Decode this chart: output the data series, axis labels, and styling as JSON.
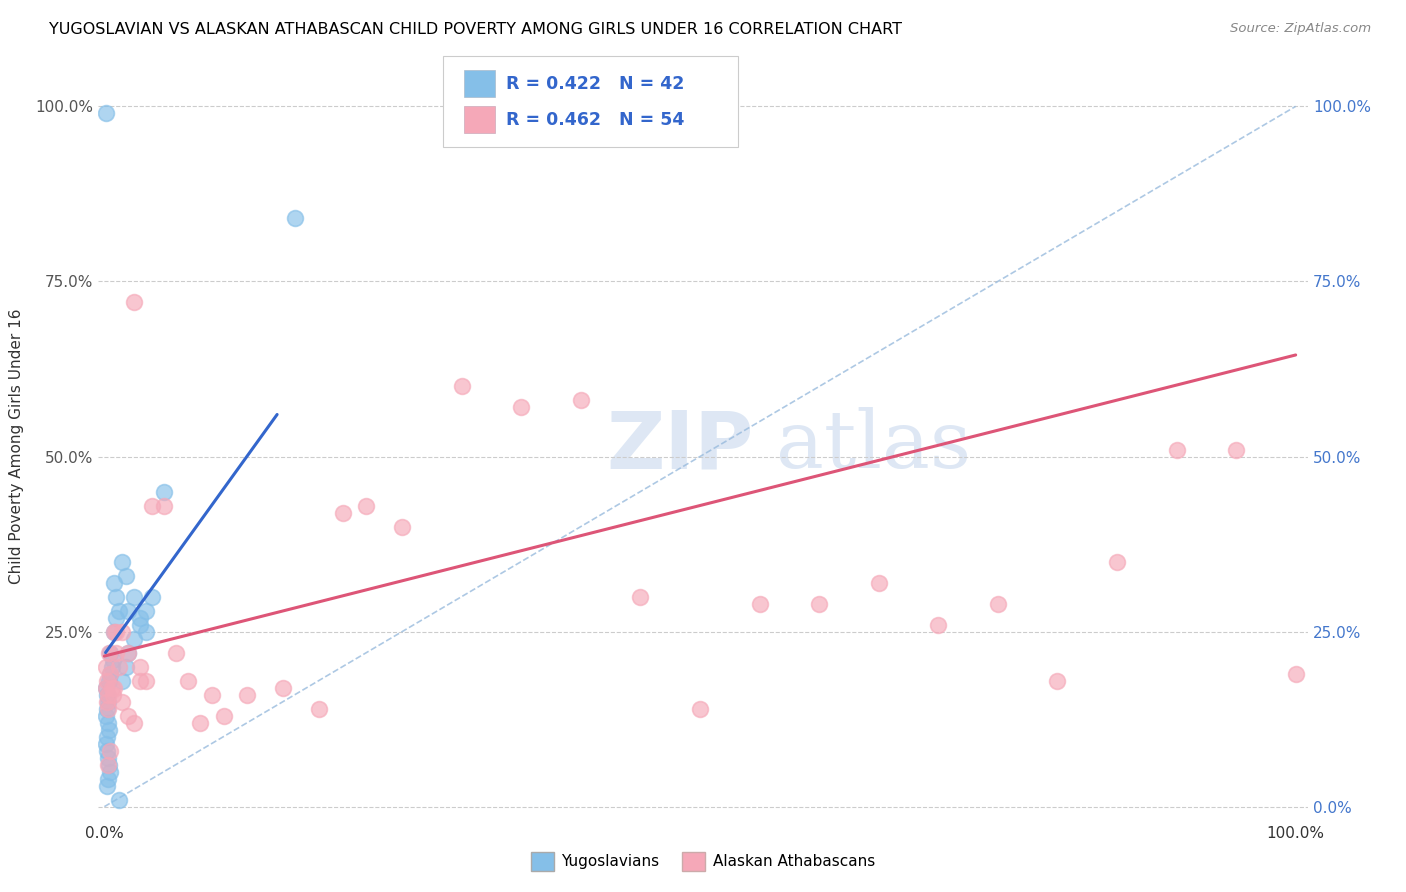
{
  "title": "YUGOSLAVIAN VS ALASKAN ATHABASCAN CHILD POVERTY AMONG GIRLS UNDER 16 CORRELATION CHART",
  "source": "Source: ZipAtlas.com",
  "ylabel": "Child Poverty Among Girls Under 16",
  "legend_label1": "Yugoslavians",
  "legend_label2": "Alaskan Athabascans",
  "legend_R1": "R = 0.422",
  "legend_N1": "N = 42",
  "legend_R2": "R = 0.462",
  "legend_N2": "N = 54",
  "color_blue": "#85bfe8",
  "color_pink": "#f5a8b8",
  "color_blue_line": "#3366cc",
  "color_pink_line": "#dd5577",
  "color_diag": "#99bbdd",
  "blue_x": [
    0.001,
    0.002,
    0.003,
    0.002,
    0.001,
    0.003,
    0.004,
    0.002,
    0.001,
    0.002,
    0.003,
    0.004,
    0.005,
    0.003,
    0.002,
    0.004,
    0.005,
    0.006,
    0.007,
    0.005,
    0.008,
    0.01,
    0.012,
    0.01,
    0.008,
    0.015,
    0.018,
    0.02,
    0.025,
    0.03,
    0.035,
    0.04,
    0.035,
    0.03,
    0.025,
    0.02,
    0.018,
    0.015,
    0.012,
    0.05,
    0.16,
    0.001
  ],
  "blue_y": [
    0.17,
    0.16,
    0.15,
    0.14,
    0.13,
    0.12,
    0.11,
    0.1,
    0.09,
    0.08,
    0.07,
    0.06,
    0.05,
    0.04,
    0.03,
    0.18,
    0.19,
    0.2,
    0.21,
    0.22,
    0.25,
    0.27,
    0.28,
    0.3,
    0.32,
    0.35,
    0.33,
    0.28,
    0.3,
    0.27,
    0.25,
    0.3,
    0.28,
    0.26,
    0.24,
    0.22,
    0.2,
    0.18,
    0.01,
    0.45,
    0.84,
    0.99
  ],
  "pink_x": [
    0.001,
    0.002,
    0.003,
    0.001,
    0.002,
    0.003,
    0.004,
    0.005,
    0.006,
    0.007,
    0.008,
    0.01,
    0.012,
    0.015,
    0.02,
    0.025,
    0.03,
    0.035,
    0.04,
    0.05,
    0.06,
    0.07,
    0.08,
    0.09,
    0.1,
    0.12,
    0.15,
    0.18,
    0.2,
    0.22,
    0.25,
    0.3,
    0.35,
    0.4,
    0.45,
    0.5,
    0.55,
    0.6,
    0.65,
    0.7,
    0.75,
    0.8,
    0.85,
    0.9,
    0.95,
    1.0,
    0.02,
    0.025,
    0.005,
    0.003,
    0.01,
    0.008,
    0.015,
    0.03
  ],
  "pink_y": [
    0.17,
    0.15,
    0.14,
    0.2,
    0.18,
    0.16,
    0.22,
    0.19,
    0.17,
    0.16,
    0.25,
    0.22,
    0.2,
    0.25,
    0.22,
    0.72,
    0.2,
    0.18,
    0.43,
    0.43,
    0.22,
    0.18,
    0.12,
    0.16,
    0.13,
    0.16,
    0.17,
    0.14,
    0.42,
    0.43,
    0.4,
    0.6,
    0.57,
    0.58,
    0.3,
    0.14,
    0.29,
    0.29,
    0.32,
    0.26,
    0.29,
    0.18,
    0.35,
    0.51,
    0.51,
    0.19,
    0.13,
    0.12,
    0.08,
    0.06,
    0.25,
    0.17,
    0.15,
    0.18
  ],
  "blue_line_x": [
    0.001,
    0.145
  ],
  "blue_line_y": [
    0.22,
    0.56
  ],
  "pink_line_x": [
    0.0,
    1.0
  ],
  "pink_line_y": [
    0.215,
    0.645
  ],
  "xlim": [
    0.0,
    1.0
  ],
  "ylim": [
    0.0,
    1.0
  ],
  "xticks": [
    0.0,
    1.0
  ],
  "xtick_labels": [
    "0.0%",
    "100.0%"
  ],
  "yticks": [
    0.0,
    0.25,
    0.5,
    0.75,
    1.0
  ],
  "ytick_labels_left": [
    "",
    "25.0%",
    "50.0%",
    "75.0%",
    "100.0%"
  ],
  "ytick_labels_right": [
    "0.0%",
    "25.0%",
    "50.0%",
    "75.0%",
    "100.0%"
  ]
}
